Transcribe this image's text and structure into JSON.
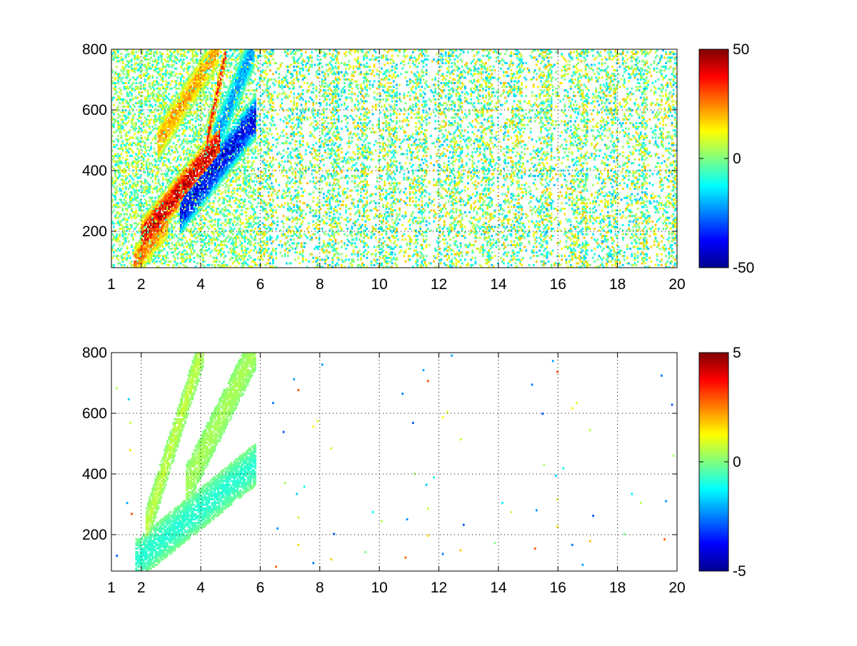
{
  "figure": {
    "background": "#ffffff",
    "colormap": "jet"
  },
  "chart_data": [
    {
      "type": "heatmap",
      "title": "",
      "xlabel": "",
      "ylabel": "",
      "xlim": [
        1,
        20
      ],
      "ylim": [
        80,
        800
      ],
      "grid": true,
      "x_ticks": [
        1,
        2,
        4,
        6,
        8,
        10,
        12,
        14,
        16,
        18,
        20
      ],
      "x_tick_labels": [
        "1",
        "2",
        "4",
        "6",
        "8",
        "10",
        "12",
        "14",
        "16",
        "18",
        "20"
      ],
      "y_ticks": [
        200,
        400,
        600,
        800
      ],
      "y_tick_labels": [
        "200",
        "400",
        "600",
        "800"
      ],
      "colorbar": {
        "clim": [
          -50,
          50
        ],
        "ticks": [
          50,
          0,
          -50
        ],
        "tick_labels": [
          "50",
          "0",
          "-50"
        ],
        "colormap": "jet"
      },
      "features": [
        {
          "shape": "band",
          "x_start": 2.1,
          "y_start": 190,
          "x_end": 4.5,
          "y_end": 480,
          "width_y": 130,
          "value": 40
        },
        {
          "shape": "band",
          "x_start": 2.6,
          "y_start": 500,
          "x_end": 4.5,
          "y_end": 790,
          "width_y": 120,
          "value": 22
        },
        {
          "shape": "band",
          "x_start": 3.4,
          "y_start": 270,
          "x_end": 5.7,
          "y_end": 560,
          "width_y": 150,
          "value": -38
        },
        {
          "shape": "band",
          "x_start": 4.3,
          "y_start": 460,
          "x_end": 5.7,
          "y_end": 790,
          "width_y": 140,
          "value": -22
        },
        {
          "shape": "band",
          "x_start": 1.8,
          "y_start": 100,
          "x_end": 2.8,
          "y_end": 220,
          "width_y": 110,
          "value": 25
        },
        {
          "shape": "band",
          "x_start": 4.2,
          "y_start": 500,
          "x_end": 4.8,
          "y_end": 780,
          "width_y": 90,
          "value": 35
        }
      ],
      "region_x": [
        1.0,
        5.8
      ],
      "noise_x": [
        5.8,
        20.0
      ]
    },
    {
      "type": "heatmap",
      "title": "",
      "xlabel": "",
      "ylabel": "",
      "xlim": [
        1,
        20
      ],
      "ylim": [
        80,
        800
      ],
      "grid": true,
      "x_ticks": [
        1,
        2,
        4,
        6,
        8,
        10,
        12,
        14,
        16,
        18,
        20
      ],
      "x_tick_labels": [
        "1",
        "2",
        "4",
        "6",
        "8",
        "10",
        "12",
        "14",
        "16",
        "18",
        "20"
      ],
      "y_ticks": [
        200,
        400,
        600,
        800
      ],
      "y_tick_labels": [
        "200",
        "400",
        "600",
        "800"
      ],
      "colorbar": {
        "clim": [
          -5,
          5
        ],
        "ticks": [
          5,
          0,
          -5
        ],
        "tick_labels": [
          "5",
          "0",
          "-5"
        ],
        "colormap": "jet"
      },
      "features": [
        {
          "shape": "band",
          "x_start": 1.9,
          "y_start": 120,
          "x_end": 5.7,
          "y_end": 420,
          "width_y": 140,
          "value": -0.8
        },
        {
          "shape": "band",
          "x_start": 2.2,
          "y_start": 240,
          "x_end": 4.0,
          "y_end": 800,
          "width_y": 130,
          "value": 0.6
        },
        {
          "shape": "band",
          "x_start": 3.6,
          "y_start": 380,
          "x_end": 5.7,
          "y_end": 790,
          "width_y": 140,
          "value": 0.4
        }
      ],
      "region_x": [
        1.8,
        5.8
      ],
      "noise_x": [
        5.8,
        20.0
      ]
    }
  ]
}
